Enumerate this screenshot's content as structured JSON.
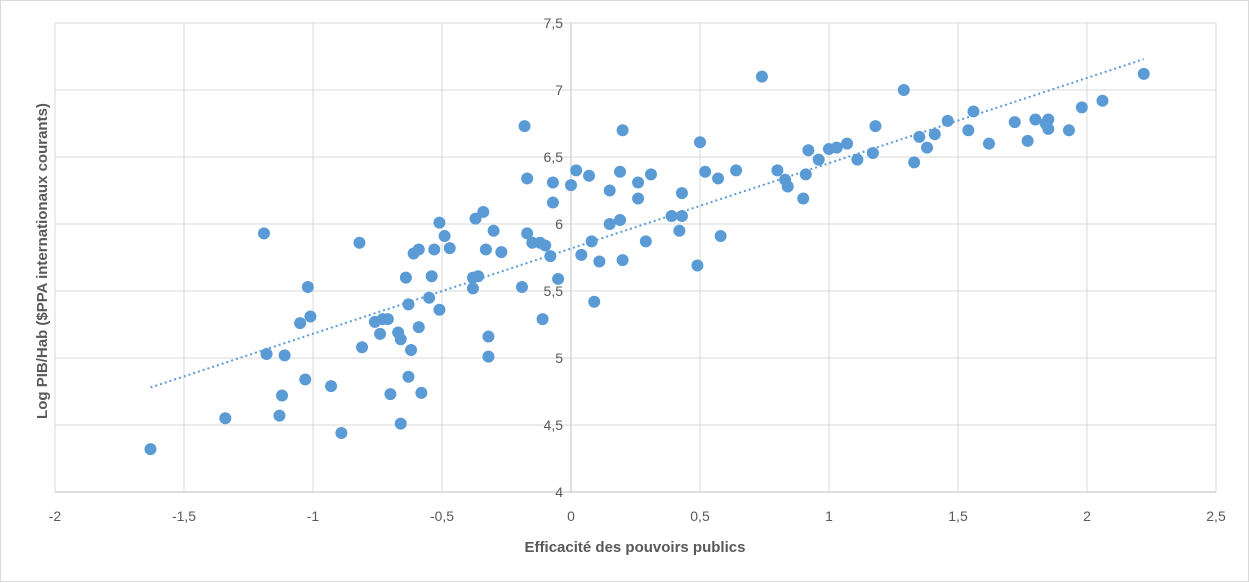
{
  "chart_data": {
    "type": "scatter",
    "title": "",
    "xlabel": "Efficacité des pouvoirs publics",
    "ylabel": "Log PIB/Hab ($PPA internationaux courants)",
    "xlim": [
      -2,
      2.5
    ],
    "ylim": [
      4,
      7.5
    ],
    "x_ticks": [
      "-2",
      "-1,5",
      "-1",
      "-0,5",
      "0",
      "0,5",
      "1",
      "1,5",
      "2",
      "2,5"
    ],
    "y_ticks": [
      "4",
      "4,5",
      "5",
      "5,5",
      "6",
      "6,5",
      "7",
      "7,5"
    ],
    "grid": true,
    "legend": "none",
    "point_color": "#5b9bd5",
    "trendline": {
      "type": "linear",
      "style": "dotted",
      "color": "#5b9bd5",
      "x_start": -1.63,
      "y_start": 4.78,
      "x_end": 2.22,
      "y_end": 7.23
    },
    "points": [
      [
        -1.63,
        4.32
      ],
      [
        -1.34,
        4.55
      ],
      [
        -1.19,
        5.93
      ],
      [
        -1.18,
        5.03
      ],
      [
        -1.13,
        4.57
      ],
      [
        -1.12,
        4.72
      ],
      [
        -1.11,
        5.02
      ],
      [
        -1.05,
        5.26
      ],
      [
        -1.03,
        4.84
      ],
      [
        -1.02,
        5.53
      ],
      [
        -1.01,
        5.31
      ],
      [
        -0.93,
        4.79
      ],
      [
        -0.89,
        4.44
      ],
      [
        -0.82,
        5.86
      ],
      [
        -0.81,
        5.08
      ],
      [
        -0.76,
        5.27
      ],
      [
        -0.74,
        5.18
      ],
      [
        -0.73,
        5.29
      ],
      [
        -0.71,
        5.29
      ],
      [
        -0.7,
        4.73
      ],
      [
        -0.67,
        5.19
      ],
      [
        -0.66,
        5.14
      ],
      [
        -0.66,
        4.51
      ],
      [
        -0.64,
        5.6
      ],
      [
        -0.63,
        4.86
      ],
      [
        -0.63,
        5.4
      ],
      [
        -0.62,
        5.06
      ],
      [
        -0.61,
        5.78
      ],
      [
        -0.59,
        5.23
      ],
      [
        -0.59,
        5.81
      ],
      [
        -0.58,
        4.74
      ],
      [
        -0.55,
        5.45
      ],
      [
        -0.54,
        5.61
      ],
      [
        -0.53,
        5.81
      ],
      [
        -0.51,
        6.01
      ],
      [
        -0.51,
        5.36
      ],
      [
        -0.49,
        5.91
      ],
      [
        -0.47,
        5.82
      ],
      [
        -0.38,
        5.6
      ],
      [
        -0.38,
        5.52
      ],
      [
        -0.37,
        6.04
      ],
      [
        -0.36,
        5.61
      ],
      [
        -0.34,
        6.09
      ],
      [
        -0.33,
        5.81
      ],
      [
        -0.32,
        5.16
      ],
      [
        -0.32,
        5.01
      ],
      [
        -0.3,
        5.95
      ],
      [
        -0.27,
        5.79
      ],
      [
        -0.19,
        5.53
      ],
      [
        -0.18,
        6.73
      ],
      [
        -0.17,
        6.34
      ],
      [
        -0.17,
        5.93
      ],
      [
        -0.15,
        5.86
      ],
      [
        -0.12,
        5.86
      ],
      [
        -0.11,
        5.29
      ],
      [
        -0.1,
        5.84
      ],
      [
        -0.08,
        5.76
      ],
      [
        -0.07,
        6.31
      ],
      [
        -0.07,
        6.16
      ],
      [
        -0.05,
        5.59
      ],
      [
        0.0,
        6.29
      ],
      [
        0.02,
        6.4
      ],
      [
        0.04,
        5.77
      ],
      [
        0.07,
        6.36
      ],
      [
        0.08,
        5.87
      ],
      [
        0.09,
        5.42
      ],
      [
        0.11,
        5.72
      ],
      [
        0.15,
        6.25
      ],
      [
        0.15,
        6.0
      ],
      [
        0.19,
        6.03
      ],
      [
        0.19,
        6.39
      ],
      [
        0.2,
        6.7
      ],
      [
        0.2,
        5.73
      ],
      [
        0.26,
        6.31
      ],
      [
        0.26,
        6.19
      ],
      [
        0.29,
        5.87
      ],
      [
        0.31,
        6.37
      ],
      [
        0.39,
        6.06
      ],
      [
        0.42,
        5.95
      ],
      [
        0.43,
        6.23
      ],
      [
        0.43,
        6.06
      ],
      [
        0.49,
        5.69
      ],
      [
        0.5,
        6.61
      ],
      [
        0.52,
        6.39
      ],
      [
        0.57,
        6.34
      ],
      [
        0.58,
        5.91
      ],
      [
        0.64,
        6.4
      ],
      [
        0.74,
        7.1
      ],
      [
        0.8,
        6.4
      ],
      [
        0.83,
        6.33
      ],
      [
        0.84,
        6.28
      ],
      [
        0.9,
        6.19
      ],
      [
        0.91,
        6.37
      ],
      [
        0.92,
        6.55
      ],
      [
        0.96,
        6.48
      ],
      [
        1.0,
        6.56
      ],
      [
        1.03,
        6.57
      ],
      [
        1.07,
        6.6
      ],
      [
        1.11,
        6.48
      ],
      [
        1.17,
        6.53
      ],
      [
        1.18,
        6.73
      ],
      [
        1.29,
        7.0
      ],
      [
        1.33,
        6.46
      ],
      [
        1.35,
        6.65
      ],
      [
        1.38,
        6.57
      ],
      [
        1.41,
        6.67
      ],
      [
        1.46,
        6.77
      ],
      [
        1.54,
        6.7
      ],
      [
        1.56,
        6.84
      ],
      [
        1.62,
        6.6
      ],
      [
        1.72,
        6.76
      ],
      [
        1.77,
        6.62
      ],
      [
        1.8,
        6.78
      ],
      [
        1.84,
        6.75
      ],
      [
        1.85,
        6.78
      ],
      [
        1.85,
        6.71
      ],
      [
        1.93,
        6.7
      ],
      [
        1.98,
        6.87
      ],
      [
        2.06,
        6.92
      ],
      [
        2.22,
        7.12
      ]
    ]
  }
}
